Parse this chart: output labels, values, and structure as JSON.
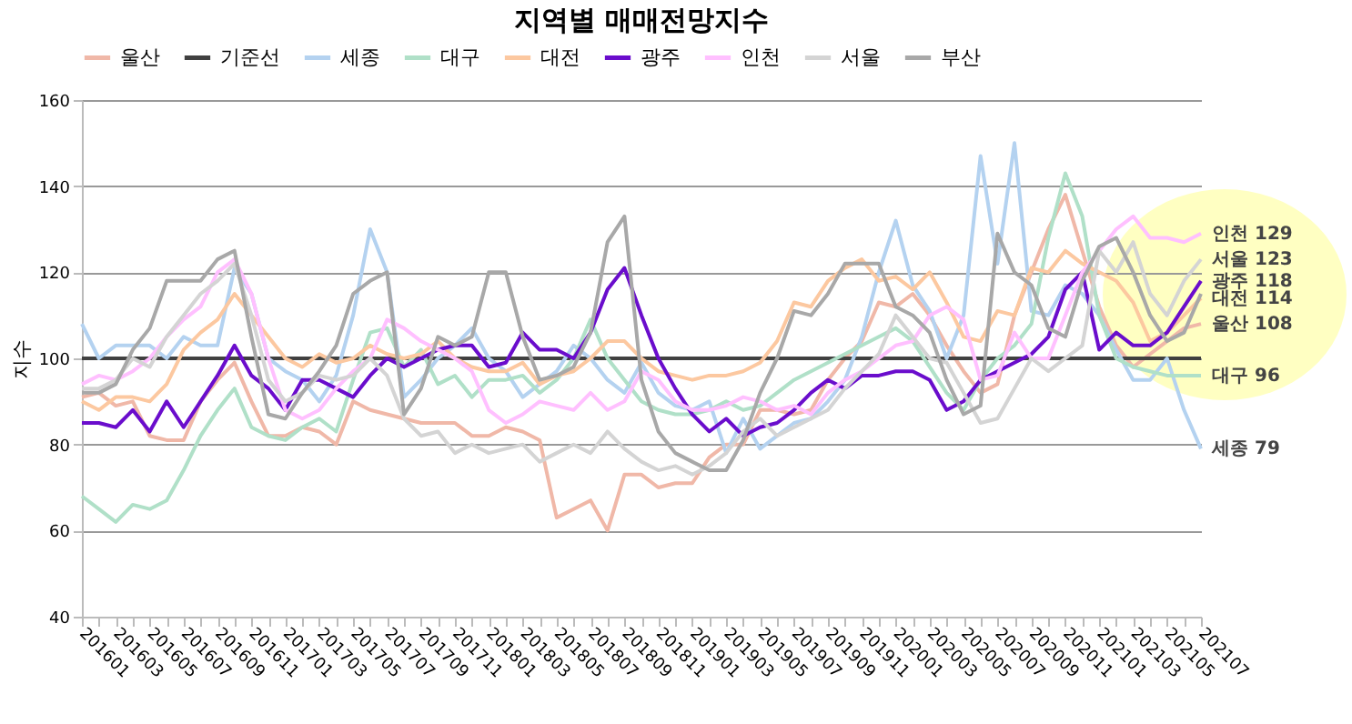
{
  "chart_data": {
    "type": "line",
    "title": "지역별 매매전망지수",
    "ylabel": "지수",
    "categories": [
      "201601",
      null,
      "201603",
      null,
      "201605",
      null,
      "201607",
      null,
      "201609",
      null,
      "201611",
      null,
      "201701",
      null,
      "201703",
      null,
      "201705",
      null,
      "201707",
      null,
      "201709",
      null,
      "201711",
      null,
      "201801",
      null,
      "201803",
      null,
      "201805",
      null,
      "201807",
      null,
      "201809",
      null,
      "201811",
      null,
      "201901",
      null,
      "201903",
      null,
      "201905",
      null,
      "201907",
      null,
      "201909",
      null,
      "201911",
      null,
      "202001",
      null,
      "202003",
      null,
      "202005",
      null,
      "202007",
      null,
      "202009",
      null,
      "202011",
      null,
      "202101",
      null,
      "202103",
      null,
      "202105",
      null,
      "202107"
    ],
    "ylim": [
      40,
      160
    ],
    "yticks": [
      40,
      60,
      80,
      100,
      120,
      140,
      160
    ],
    "grid": "y",
    "legend": "top",
    "series": [
      {
        "name": "울산",
        "color": "#f0b8a8",
        "values": [
          91,
          92,
          89,
          90,
          82,
          81,
          81,
          90,
          95,
          99,
          90,
          82,
          82,
          84,
          83,
          80,
          90,
          88,
          87,
          86,
          85,
          85,
          85,
          82,
          82,
          84,
          83,
          81,
          63,
          65,
          67,
          60,
          73,
          73,
          70,
          71,
          71,
          77,
          80,
          80,
          88,
          88,
          87,
          88,
          95,
          100,
          104,
          113,
          112,
          115,
          110,
          103,
          97,
          92,
          94,
          110,
          120,
          130,
          138,
          125,
          112,
          103,
          98,
          101,
          104,
          107,
          108
        ],
        "value_labels": [
          null,
          null,
          null,
          null,
          null,
          null,
          null,
          null,
          null,
          null,
          null,
          null,
          null,
          null,
          null,
          null,
          null,
          null,
          null,
          null,
          null,
          null,
          null,
          null,
          null,
          null,
          null,
          null,
          null,
          null,
          null,
          null,
          null,
          null,
          null,
          null,
          null,
          null,
          null,
          null,
          null,
          null,
          null,
          null,
          null,
          null,
          null,
          null,
          null,
          null,
          null,
          null,
          null,
          null,
          null,
          null,
          null,
          null,
          null,
          null,
          null,
          null,
          null,
          null,
          null,
          null,
          "108"
        ]
      },
      {
        "name": "기준선",
        "color": "#404040",
        "values": [
          100,
          100,
          100,
          100,
          100,
          100,
          100,
          100,
          100,
          100,
          100,
          100,
          100,
          100,
          100,
          100,
          100,
          100,
          100,
          100,
          100,
          100,
          100,
          100,
          100,
          100,
          100,
          100,
          100,
          100,
          100,
          100,
          100,
          100,
          100,
          100,
          100,
          100,
          100,
          100,
          100,
          100,
          100,
          100,
          100,
          100,
          100,
          100,
          100,
          100,
          100,
          100,
          100,
          100,
          100,
          100,
          100,
          100,
          100,
          100,
          100,
          100,
          100,
          100,
          100,
          100,
          100
        ]
      },
      {
        "name": "세종",
        "color": "#b4d2f0",
        "values": [
          108,
          100,
          103,
          103,
          103,
          100,
          105,
          103,
          103,
          121,
          115,
          100,
          97,
          95,
          90,
          96,
          110,
          130,
          120,
          91,
          95,
          100,
          103,
          107,
          100,
          97,
          91,
          94,
          97,
          103,
          100,
          95,
          92,
          99,
          92,
          89,
          88,
          90,
          78,
          86,
          79,
          82,
          85,
          86,
          90,
          95,
          105,
          120,
          132,
          117,
          111,
          100,
          110,
          147,
          122,
          150,
          111,
          110,
          117,
          115,
          110,
          102,
          95,
          95,
          100,
          88,
          79
        ],
        "value_labels": [
          null,
          null,
          null,
          null,
          null,
          null,
          null,
          null,
          null,
          null,
          null,
          null,
          null,
          null,
          null,
          null,
          null,
          null,
          null,
          null,
          null,
          null,
          null,
          null,
          null,
          null,
          null,
          null,
          null,
          null,
          null,
          null,
          null,
          null,
          null,
          null,
          null,
          null,
          null,
          null,
          null,
          null,
          null,
          null,
          null,
          null,
          null,
          null,
          null,
          null,
          null,
          null,
          null,
          null,
          null,
          null,
          null,
          null,
          null,
          null,
          null,
          null,
          null,
          null,
          null,
          null,
          "79"
        ]
      },
      {
        "name": "대구",
        "color": "#b0e0c8",
        "values": [
          68,
          65,
          62,
          66,
          65,
          67,
          74,
          82,
          88,
          93,
          84,
          82,
          81,
          84,
          86,
          83,
          95,
          106,
          107,
          98,
          102,
          94,
          96,
          91,
          95,
          95,
          96,
          92,
          95,
          100,
          109,
          100,
          95,
          90,
          88,
          87,
          87,
          88,
          90,
          88,
          89,
          92,
          95,
          97,
          99,
          101,
          103,
          105,
          107,
          104,
          98,
          92,
          88,
          95,
          100,
          103,
          108,
          128,
          143,
          133,
          110,
          100,
          98,
          97,
          96,
          96,
          96
        ],
        "value_labels": [
          null,
          null,
          null,
          null,
          null,
          null,
          null,
          null,
          null,
          null,
          null,
          null,
          null,
          null,
          null,
          null,
          null,
          null,
          null,
          null,
          null,
          null,
          null,
          null,
          null,
          null,
          null,
          null,
          null,
          null,
          null,
          null,
          null,
          null,
          null,
          null,
          null,
          null,
          null,
          null,
          null,
          null,
          null,
          null,
          null,
          null,
          null,
          null,
          null,
          null,
          null,
          null,
          null,
          null,
          null,
          null,
          null,
          null,
          null,
          null,
          null,
          null,
          null,
          null,
          null,
          null,
          "96"
        ]
      },
      {
        "name": "대전",
        "color": "#fcc8a0",
        "values": [
          90,
          88,
          91,
          91,
          90,
          94,
          102,
          106,
          109,
          115,
          110,
          105,
          100,
          98,
          101,
          99,
          100,
          103,
          101,
          100,
          101,
          104,
          100,
          98,
          97,
          97,
          99,
          94,
          96,
          97,
          100,
          104,
          104,
          100,
          97,
          96,
          95,
          96,
          96,
          97,
          99,
          104,
          113,
          112,
          118,
          121,
          123,
          118,
          119,
          116,
          120,
          113,
          105,
          104,
          111,
          110,
          121,
          120,
          125,
          122,
          120,
          118,
          113,
          104,
          106,
          110,
          114
        ],
        "value_labels": [
          null,
          null,
          null,
          null,
          null,
          null,
          null,
          null,
          null,
          null,
          null,
          null,
          null,
          null,
          null,
          null,
          null,
          null,
          null,
          null,
          null,
          null,
          null,
          null,
          null,
          null,
          null,
          null,
          null,
          null,
          null,
          null,
          null,
          null,
          null,
          null,
          null,
          null,
          null,
          null,
          null,
          null,
          null,
          null,
          null,
          null,
          null,
          null,
          null,
          null,
          null,
          null,
          null,
          null,
          null,
          null,
          null,
          null,
          null,
          null,
          null,
          null,
          null,
          null,
          null,
          null,
          "114"
        ]
      },
      {
        "name": "광주",
        "color": "#6a0dcc",
        "values": [
          85,
          85,
          84,
          88,
          83,
          90,
          84,
          90,
          96,
          103,
          96,
          93,
          88,
          95,
          95,
          93,
          91,
          96,
          100,
          98,
          100,
          102,
          103,
          103,
          98,
          99,
          106,
          102,
          102,
          100,
          106,
          116,
          121,
          110,
          100,
          93,
          87,
          83,
          86,
          82,
          84,
          85,
          88,
          92,
          95,
          93,
          96,
          96,
          97,
          97,
          95,
          88,
          90,
          95,
          97,
          99,
          101,
          105,
          116,
          120,
          102,
          106,
          103,
          103,
          106,
          112,
          118
        ],
        "value_labels": [
          null,
          null,
          null,
          null,
          null,
          null,
          null,
          null,
          null,
          null,
          null,
          null,
          null,
          null,
          null,
          null,
          null,
          null,
          null,
          null,
          null,
          null,
          null,
          null,
          null,
          null,
          null,
          null,
          null,
          null,
          null,
          null,
          null,
          null,
          null,
          null,
          null,
          null,
          null,
          null,
          null,
          null,
          null,
          null,
          null,
          null,
          null,
          null,
          null,
          null,
          null,
          null,
          null,
          null,
          null,
          null,
          null,
          null,
          null,
          null,
          null,
          null,
          null,
          null,
          null,
          null,
          "118"
        ]
      },
      {
        "name": "인천",
        "color": "#ffc0ff",
        "values": [
          94,
          96,
          95,
          97,
          100,
          105,
          109,
          112,
          120,
          123,
          115,
          100,
          88,
          86,
          88,
          93,
          97,
          100,
          109,
          107,
          104,
          102,
          100,
          97,
          88,
          85,
          87,
          90,
          89,
          88,
          92,
          88,
          90,
          97,
          95,
          90,
          88,
          88,
          89,
          91,
          90,
          88,
          89,
          87,
          92,
          95,
          97,
          100,
          103,
          104,
          110,
          112,
          109,
          95,
          96,
          106,
          100,
          100,
          110,
          120,
          125,
          130,
          133,
          128,
          128,
          127,
          129
        ],
        "value_labels": [
          null,
          null,
          null,
          null,
          null,
          null,
          null,
          null,
          null,
          null,
          null,
          null,
          null,
          null,
          null,
          null,
          null,
          null,
          null,
          null,
          null,
          null,
          null,
          null,
          null,
          null,
          null,
          null,
          null,
          null,
          null,
          null,
          null,
          null,
          null,
          null,
          null,
          null,
          null,
          null,
          null,
          null,
          null,
          null,
          null,
          null,
          null,
          null,
          null,
          null,
          null,
          null,
          null,
          null,
          null,
          null,
          null,
          null,
          null,
          null,
          null,
          null,
          null,
          null,
          null,
          null,
          "129"
        ]
      },
      {
        "name": "서울",
        "color": "#d4d4d4",
        "values": [
          93,
          93,
          95,
          100,
          98,
          105,
          110,
          115,
          118,
          122,
          110,
          95,
          90,
          92,
          96,
          95,
          96,
          100,
          96,
          86,
          82,
          83,
          78,
          80,
          78,
          79,
          80,
          76,
          78,
          80,
          78,
          83,
          79,
          76,
          74,
          75,
          73,
          75,
          78,
          83,
          86,
          82,
          84,
          86,
          88,
          93,
          97,
          101,
          110,
          105,
          100,
          99,
          92,
          85,
          86,
          93,
          100,
          97,
          100,
          103,
          125,
          120,
          127,
          115,
          110,
          118,
          123
        ],
        "value_labels": [
          null,
          null,
          null,
          null,
          null,
          null,
          null,
          null,
          null,
          null,
          null,
          null,
          null,
          null,
          null,
          null,
          null,
          null,
          null,
          null,
          null,
          null,
          null,
          null,
          null,
          null,
          null,
          null,
          null,
          null,
          null,
          null,
          null,
          null,
          null,
          null,
          null,
          null,
          null,
          null,
          null,
          null,
          null,
          null,
          null,
          null,
          null,
          null,
          null,
          null,
          null,
          null,
          null,
          null,
          null,
          null,
          null,
          null,
          null,
          null,
          null,
          null,
          null,
          null,
          null,
          null,
          "123"
        ]
      },
      {
        "name": "부산",
        "color": "#a8a8a8",
        "values": [
          92,
          92,
          94,
          102,
          107,
          118,
          118,
          118,
          123,
          125,
          105,
          87,
          86,
          92,
          97,
          103,
          115,
          118,
          120,
          87,
          93,
          105,
          103,
          105,
          120,
          120,
          105,
          95,
          96,
          98,
          106,
          127,
          133,
          95,
          83,
          78,
          76,
          74,
          74,
          81,
          92,
          100,
          111,
          110,
          115,
          122,
          122,
          122,
          112,
          110,
          106,
          95,
          87,
          89,
          129,
          120,
          117,
          107,
          105,
          118,
          126,
          128,
          120,
          110,
          104,
          106,
          115
        ]
      }
    ]
  }
}
